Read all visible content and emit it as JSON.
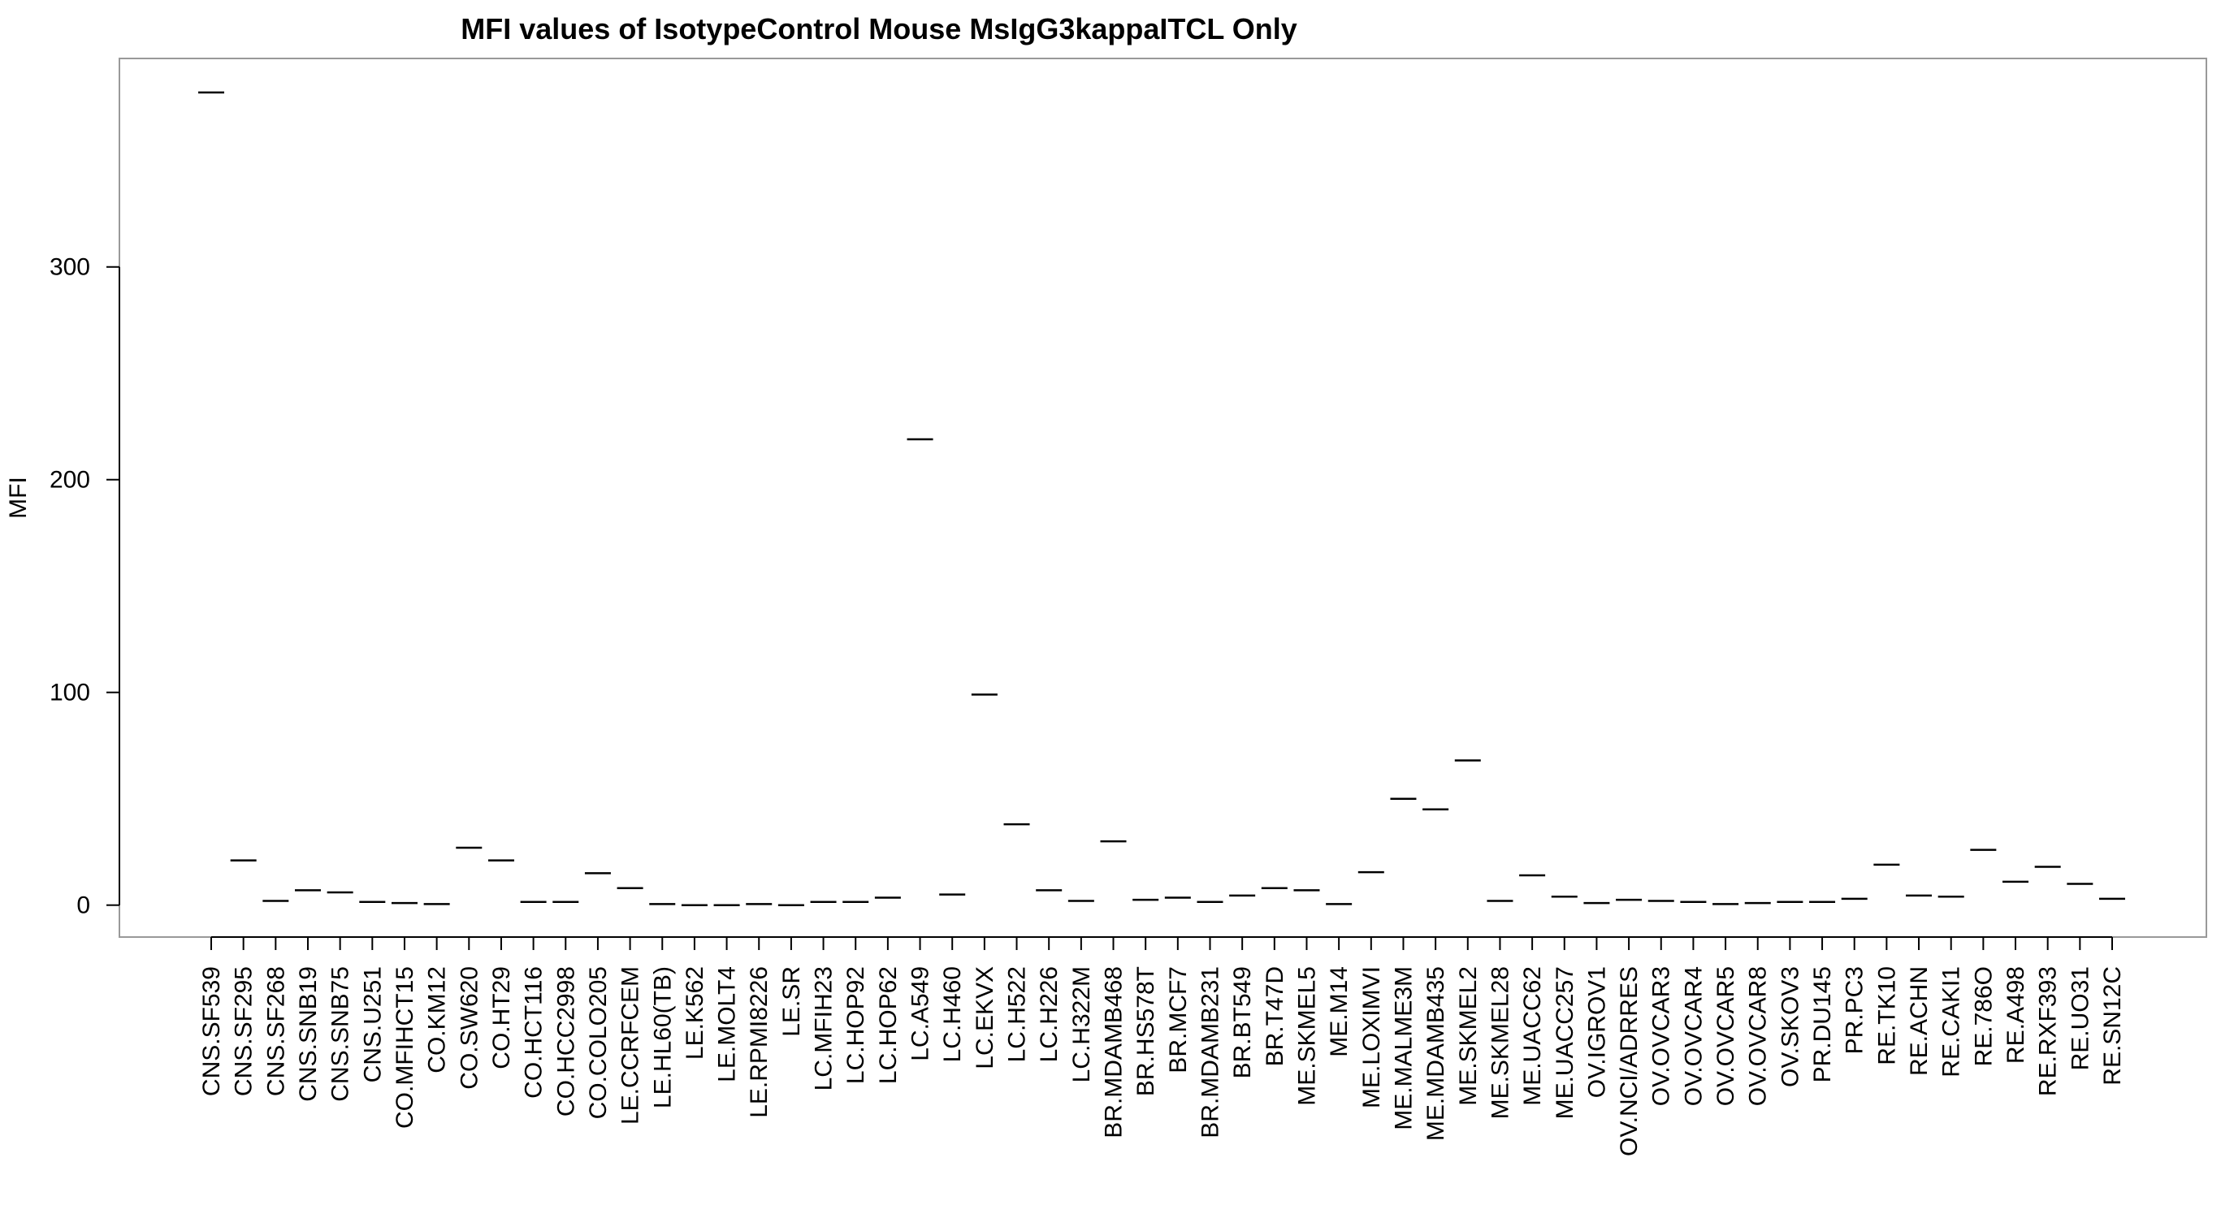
{
  "chart_data": {
    "type": "scatter",
    "marker": "horizontal-dash",
    "title": "MFI values of IsotypeControl Mouse MsIgG3kappaITCL Only",
    "xlabel": "",
    "ylabel": "MFI",
    "ylim": [
      -15,
      398
    ],
    "yticks": [
      0,
      100,
      200,
      300
    ],
    "grid": false,
    "legend": "none",
    "categories": [
      "CNS.SF539",
      "CNS.SF295",
      "CNS.SF268",
      "CNS.SNB19",
      "CNS.SNB75",
      "CNS.U251",
      "CO.MFIHCT15",
      "CO.KM12",
      "CO.SW620",
      "CO.HT29",
      "CO.HCT116",
      "CO.HCC2998",
      "CO.COLO205",
      "LE.CCRFCEM",
      "LE.HL60(TB)",
      "LE.K562",
      "LE.MOLT4",
      "LE.RPMI8226",
      "LE.SR",
      "LC.MFIH23",
      "LC.HOP92",
      "LC.HOP62",
      "LC.A549",
      "LC.H460",
      "LC.EKVX",
      "LC.H522",
      "LC.H226",
      "LC.H322M",
      "BR.MDAMB468",
      "BR.HS578T",
      "BR.MCF7",
      "BR.MDAMB231",
      "BR.BT549",
      "BR.T47D",
      "ME.SKMEL5",
      "ME.M14",
      "ME.LOXIMVI",
      "ME.MALME3M",
      "ME.MDAMB435",
      "ME.SKMEL2",
      "ME.SKMEL28",
      "ME.UACC62",
      "ME.UACC257",
      "OV.IGROV1",
      "OV.NCI/ADRRES",
      "OV.OVCAR3",
      "OV.OVCAR4",
      "OV.OVCAR5",
      "OV.OVCAR8",
      "OV.SKOV3",
      "PR.DU145",
      "PR.PC3",
      "RE.TK10",
      "RE.ACHN",
      "RE.CAKI1",
      "RE.786O",
      "RE.A498",
      "RE.RXF393",
      "RE.UO31",
      "RE.SN12C"
    ],
    "values": [
      382,
      21,
      2,
      7,
      6,
      1.5,
      1,
      0.5,
      27,
      21,
      1.5,
      1.5,
      15,
      8,
      0.5,
      0,
      0,
      0.5,
      0,
      1.5,
      1.5,
      3.5,
      219,
      5,
      99,
      38,
      7,
      2,
      30,
      2.5,
      3.5,
      1.5,
      4.5,
      8,
      7,
      0.5,
      15.5,
      50,
      45,
      68,
      2,
      14,
      4,
      1,
      2.5,
      2,
      1.5,
      0.5,
      1,
      1.5,
      1.5,
      3,
      19,
      4.5,
      4,
      26,
      11,
      18,
      10,
      3
    ]
  }
}
